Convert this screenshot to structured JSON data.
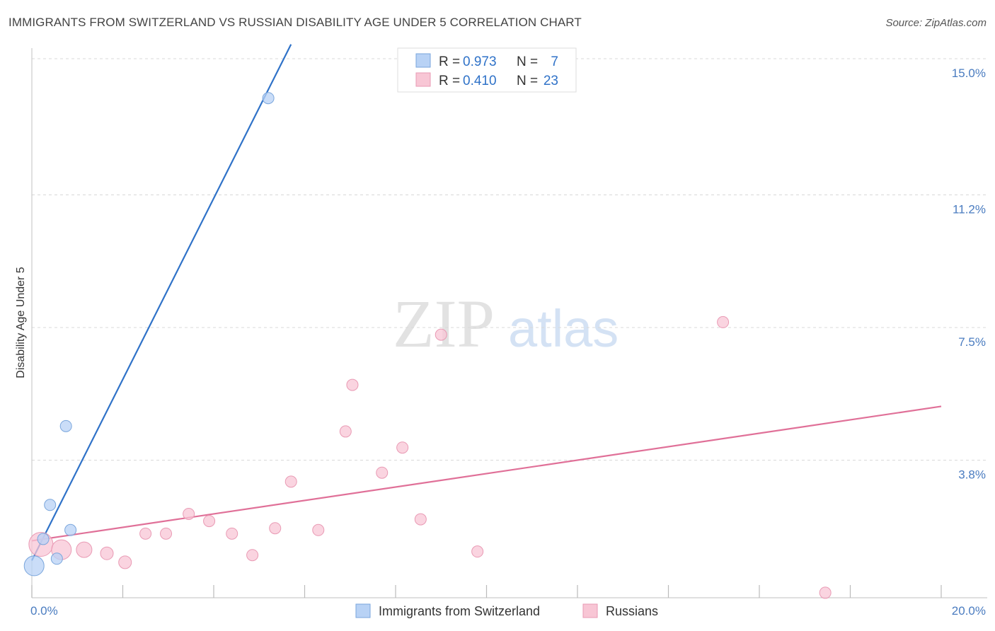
{
  "header": {
    "title": "IMMIGRANTS FROM SWITZERLAND VS RUSSIAN DISABILITY AGE UNDER 5 CORRELATION CHART",
    "source": "Source: ZipAtlas.com"
  },
  "watermark": {
    "zip": "ZIP",
    "atlas": "atlas"
  },
  "colors": {
    "blue": "#4a7cc0",
    "blue_fill": "#b8d2f5",
    "blue_line": "#2f72c8",
    "pink_fill": "#f8c6d5",
    "pink_line": "#e07098",
    "grid": "#d8d8d8"
  },
  "chart_data": {
    "type": "scatter",
    "title": "IMMIGRANTS FROM SWITZERLAND VS RUSSIAN DISABILITY AGE UNDER 5 CORRELATION CHART",
    "xlabel": "",
    "ylabel": "Disability Age Under 5",
    "xlim": [
      0,
      20
    ],
    "ylim": [
      0,
      15
    ],
    "x_tick_labels": [
      "0.0%",
      "20.0%"
    ],
    "y_ticks": [
      3.8,
      7.5,
      11.2,
      15.0
    ],
    "y_tick_labels": [
      "3.8%",
      "7.5%",
      "11.2%",
      "15.0%"
    ],
    "grid": true,
    "legend_position": "top-center",
    "series": [
      {
        "name": "Immigrants from Switzerland",
        "color": "#b8d2f5",
        "R": "0.973",
        "N": "7",
        "points": [
          {
            "x": 0.05,
            "y": 0.85,
            "size": 14
          },
          {
            "x": 0.25,
            "y": 1.6,
            "size": 8
          },
          {
            "x": 0.4,
            "y": 2.55,
            "size": 8
          },
          {
            "x": 0.55,
            "y": 1.05,
            "size": 8
          },
          {
            "x": 0.75,
            "y": 4.75,
            "size": 8
          },
          {
            "x": 0.85,
            "y": 1.85,
            "size": 8
          },
          {
            "x": 5.2,
            "y": 13.9,
            "size": 8
          }
        ],
        "trend": {
          "x": [
            0.0,
            5.7
          ],
          "y": [
            1.0,
            15.4
          ]
        }
      },
      {
        "name": "Russians",
        "color": "#f8c6d5",
        "R": "0.410",
        "N": "23",
        "points": [
          {
            "x": 0.2,
            "y": 1.45,
            "size": 17
          },
          {
            "x": 0.65,
            "y": 1.3,
            "size": 14
          },
          {
            "x": 1.15,
            "y": 1.3,
            "size": 11
          },
          {
            "x": 1.65,
            "y": 1.2,
            "size": 9
          },
          {
            "x": 2.05,
            "y": 0.95,
            "size": 9
          },
          {
            "x": 2.5,
            "y": 1.75,
            "size": 8
          },
          {
            "x": 2.95,
            "y": 1.75,
            "size": 8
          },
          {
            "x": 3.45,
            "y": 2.3,
            "size": 8
          },
          {
            "x": 3.9,
            "y": 2.1,
            "size": 8
          },
          {
            "x": 4.4,
            "y": 1.75,
            "size": 8
          },
          {
            "x": 4.85,
            "y": 1.15,
            "size": 8
          },
          {
            "x": 5.35,
            "y": 1.9,
            "size": 8
          },
          {
            "x": 5.7,
            "y": 3.2,
            "size": 8
          },
          {
            "x": 6.3,
            "y": 1.85,
            "size": 8
          },
          {
            "x": 6.9,
            "y": 4.6,
            "size": 8
          },
          {
            "x": 7.05,
            "y": 5.9,
            "size": 8
          },
          {
            "x": 7.7,
            "y": 3.45,
            "size": 8
          },
          {
            "x": 8.15,
            "y": 4.15,
            "size": 8
          },
          {
            "x": 8.55,
            "y": 2.15,
            "size": 8
          },
          {
            "x": 9.0,
            "y": 7.3,
            "size": 8
          },
          {
            "x": 9.8,
            "y": 1.25,
            "size": 8
          },
          {
            "x": 15.2,
            "y": 7.65,
            "size": 8
          },
          {
            "x": 17.45,
            "y": 0.1,
            "size": 8
          }
        ],
        "trend": {
          "x": [
            0.0,
            20.0
          ],
          "y": [
            1.55,
            5.3
          ]
        }
      }
    ]
  },
  "legend": {
    "r_label": "R =",
    "n_label": "N =",
    "rows": [
      {
        "r": "0.973",
        "n": "7"
      },
      {
        "r": "0.410",
        "n": "23"
      }
    ]
  },
  "bottom_legend": [
    "Immigrants from Switzerland",
    "Russians"
  ]
}
